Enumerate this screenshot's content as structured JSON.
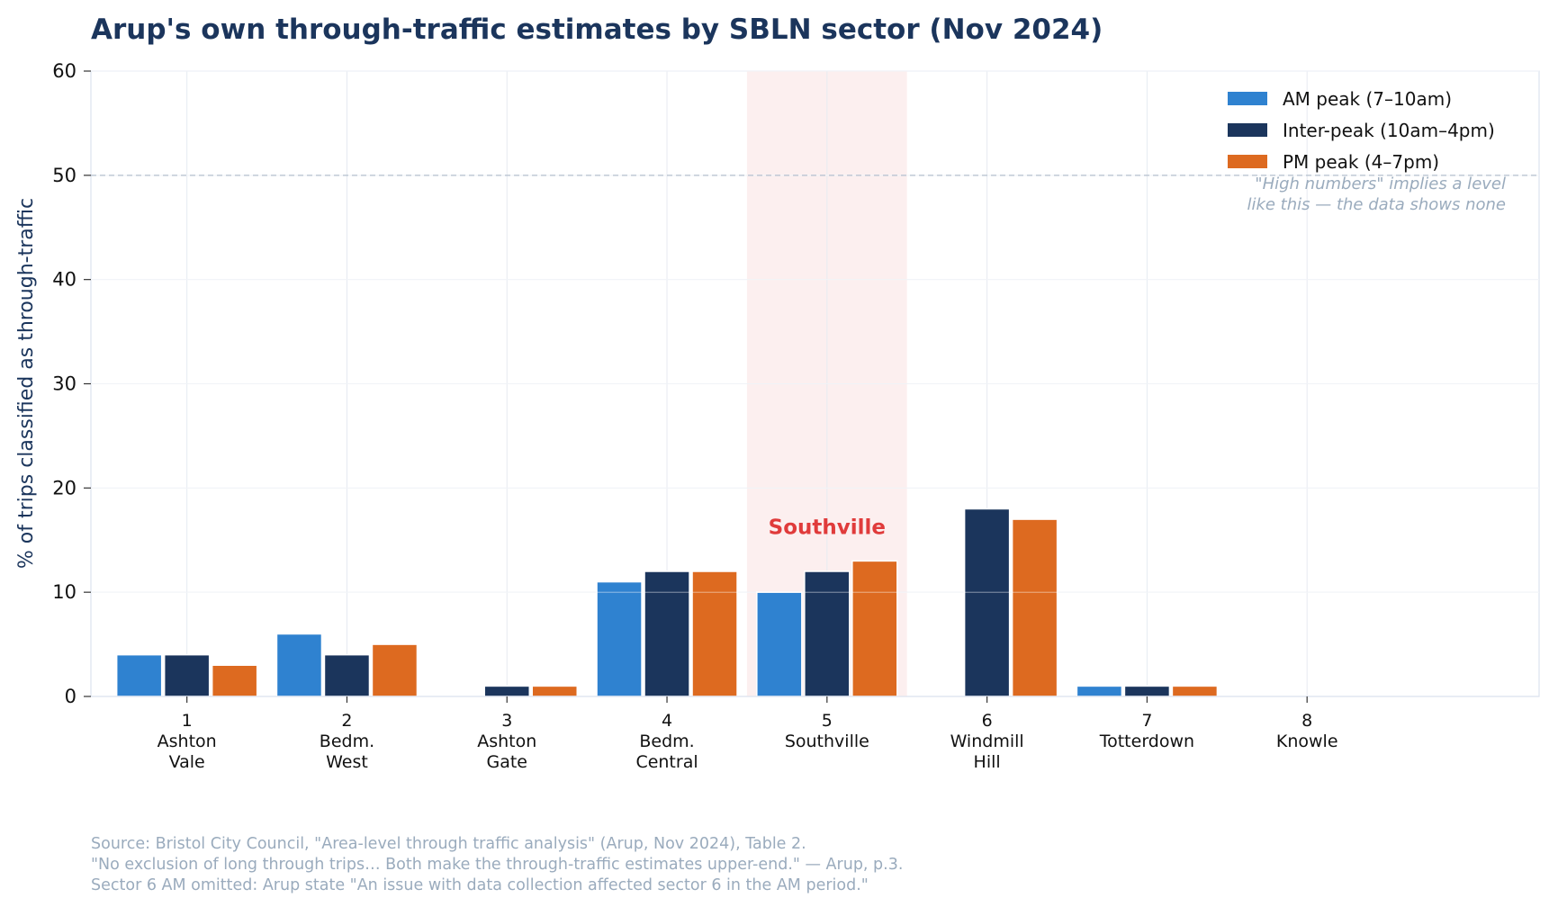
{
  "chart_data": {
    "type": "bar",
    "title": "Arup's own through-traffic estimates by SBLN sector  (Nov 2024)",
    "ylabel": "% of trips classified as through-traffic",
    "xlabel": "",
    "ylim": [
      0,
      60
    ],
    "yticks": [
      0,
      10,
      20,
      30,
      40,
      50,
      60
    ],
    "grid": true,
    "legend_position": "top-right",
    "categories": [
      {
        "number": "1",
        "name": [
          "Ashton",
          "Vale"
        ]
      },
      {
        "number": "2",
        "name": [
          "Bedm.",
          "West"
        ]
      },
      {
        "number": "3",
        "name": [
          "Ashton",
          "Gate"
        ]
      },
      {
        "number": "4",
        "name": [
          "Bedm.",
          "Central"
        ]
      },
      {
        "number": "5",
        "name": [
          "Southville"
        ]
      },
      {
        "number": "6",
        "name": [
          "Windmill",
          "Hill"
        ]
      },
      {
        "number": "7",
        "name": [
          "Totterdown"
        ]
      },
      {
        "number": "8",
        "name": [
          "Knowle"
        ]
      }
    ],
    "series": [
      {
        "name": "AM peak (7–10am)",
        "color": "#2f82d0",
        "values": [
          4,
          6,
          null,
          11,
          10,
          null,
          1,
          null
        ]
      },
      {
        "name": "Inter-peak (10am–4pm)",
        "color": "#1b355c",
        "values": [
          4,
          4,
          1,
          12,
          12,
          18,
          1,
          null
        ]
      },
      {
        "name": "PM peak (4–7pm)",
        "color": "#dd6a20",
        "values": [
          3,
          5,
          1,
          12,
          13,
          17,
          1,
          null
        ]
      }
    ],
    "highlight": {
      "category_index": 4,
      "label": "Southville",
      "color": "#e03b3b"
    },
    "reference_line": {
      "y": 50,
      "annotation": [
        "\"High numbers\" implies a level",
        "like this — the data shows none"
      ]
    }
  },
  "footnotes": [
    "Source: Bristol City Council, \"Area-level through traffic analysis\" (Arup, Nov 2024), Table 2.",
    "\"No exclusion of long through trips… Both make the through-traffic estimates upper-end.\" — Arup, p.3.",
    "Sector 6 AM omitted: Arup state \"An issue with data collection affected sector 6 in the AM period.\""
  ]
}
